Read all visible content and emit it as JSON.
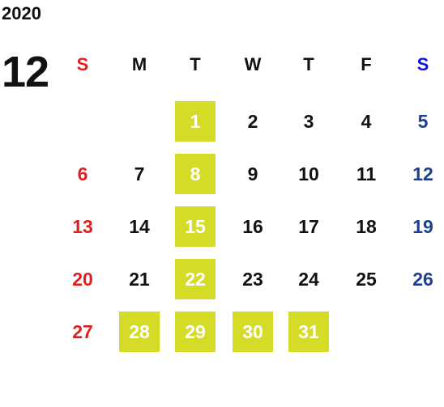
{
  "year": "2020",
  "month": "12",
  "weekdays": [
    "S",
    "M",
    "T",
    "W",
    "T",
    "F",
    "S"
  ],
  "weeks": [
    [
      null,
      null,
      {
        "day": "1",
        "highlight": true
      },
      {
        "day": "2"
      },
      {
        "day": "3"
      },
      {
        "day": "4"
      },
      {
        "day": "5"
      }
    ],
    [
      {
        "day": "6"
      },
      {
        "day": "7"
      },
      {
        "day": "8",
        "highlight": true
      },
      {
        "day": "9"
      },
      {
        "day": "10"
      },
      {
        "day": "11"
      },
      {
        "day": "12"
      }
    ],
    [
      {
        "day": "13"
      },
      {
        "day": "14"
      },
      {
        "day": "15",
        "highlight": true
      },
      {
        "day": "16"
      },
      {
        "day": "17"
      },
      {
        "day": "18"
      },
      {
        "day": "19"
      }
    ],
    [
      {
        "day": "20"
      },
      {
        "day": "21"
      },
      {
        "day": "22",
        "highlight": true
      },
      {
        "day": "23"
      },
      {
        "day": "24"
      },
      {
        "day": "25"
      },
      {
        "day": "26"
      }
    ],
    [
      {
        "day": "27"
      },
      {
        "day": "28",
        "highlight": true
      },
      {
        "day": "29",
        "highlight": true
      },
      {
        "day": "30",
        "highlight": true
      },
      {
        "day": "31",
        "highlight": true
      },
      null,
      null
    ]
  ]
}
